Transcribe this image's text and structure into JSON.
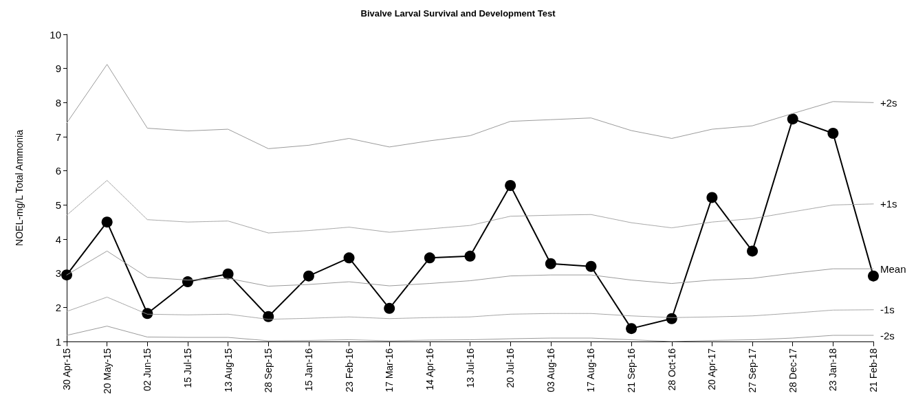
{
  "chart_data": {
    "type": "line",
    "title": "Bivalve Larval Survival and Development Test",
    "ylabel": "NOEL-mg/L Total Ammonia",
    "categories": [
      "30 Apr-15",
      "20 May-15",
      "02 Jun-15",
      "15 Jul-15",
      "13 Aug-15",
      "28 Sep-15",
      "15 Jan-16",
      "23 Feb-16",
      "17 Mar-16",
      "14 Apr-16",
      "13 Jul-16",
      "20 Jul-16",
      "03 Aug-16",
      "17 Aug-16",
      "21 Sep-16",
      "28 Oct-16",
      "20 Apr-17",
      "27 Sep-17",
      "28 Dec-17",
      "23 Jan-18",
      "21 Feb-18"
    ],
    "ylim": [
      1,
      10
    ],
    "yticks": [
      1,
      2,
      3,
      4,
      5,
      6,
      7,
      8,
      9,
      10
    ],
    "grid": false,
    "legend": false,
    "series": [
      {
        "name": "+2s",
        "color": "#9a9a9a",
        "marker": "none",
        "line_style": "solid",
        "values": [
          7.4,
          9.12,
          7.25,
          7.17,
          7.22,
          6.65,
          6.75,
          6.95,
          6.7,
          6.88,
          7.03,
          7.45,
          7.5,
          7.55,
          7.18,
          6.95,
          7.22,
          7.32,
          7.68,
          8.03,
          8.0
        ]
      },
      {
        "name": "+1s",
        "color": "#9a9a9a",
        "marker": "none",
        "line_style": "dotted",
        "values": [
          4.7,
          5.72,
          4.57,
          4.5,
          4.53,
          4.18,
          4.25,
          4.35,
          4.2,
          4.3,
          4.4,
          4.67,
          4.7,
          4.72,
          4.48,
          4.33,
          4.5,
          4.6,
          4.8,
          5.0,
          5.03
        ]
      },
      {
        "name": "Mean",
        "color": "#9a9a9a",
        "marker": "none",
        "line_style": "solid",
        "values": [
          2.95,
          3.65,
          2.88,
          2.8,
          2.85,
          2.62,
          2.67,
          2.75,
          2.63,
          2.7,
          2.78,
          2.92,
          2.95,
          2.95,
          2.8,
          2.7,
          2.8,
          2.85,
          3.0,
          3.13,
          3.13
        ]
      },
      {
        "name": "-1s",
        "color": "#9a9a9a",
        "marker": "none",
        "line_style": "dotted",
        "values": [
          1.88,
          2.3,
          1.8,
          1.78,
          1.8,
          1.65,
          1.68,
          1.72,
          1.67,
          1.7,
          1.72,
          1.8,
          1.82,
          1.82,
          1.75,
          1.7,
          1.72,
          1.75,
          1.83,
          1.92,
          1.93
        ]
      },
      {
        "name": "-2s",
        "color": "#9a9a9a",
        "marker": "none",
        "line_style": "solid",
        "values": [
          1.18,
          1.45,
          1.13,
          1.12,
          1.12,
          1.02,
          1.03,
          1.05,
          1.02,
          1.04,
          1.05,
          1.08,
          1.1,
          1.1,
          1.05,
          1.0,
          1.03,
          1.05,
          1.1,
          1.18,
          1.18
        ]
      },
      {
        "color": "#000000",
        "marker": "circle",
        "line_style": "solid",
        "values": [
          2.95,
          4.5,
          1.82,
          2.75,
          2.98,
          1.73,
          2.92,
          3.45,
          1.97,
          3.45,
          3.5,
          5.57,
          3.28,
          3.2,
          1.38,
          1.67,
          5.22,
          3.65,
          7.52,
          7.1,
          2.92
        ]
      }
    ]
  }
}
